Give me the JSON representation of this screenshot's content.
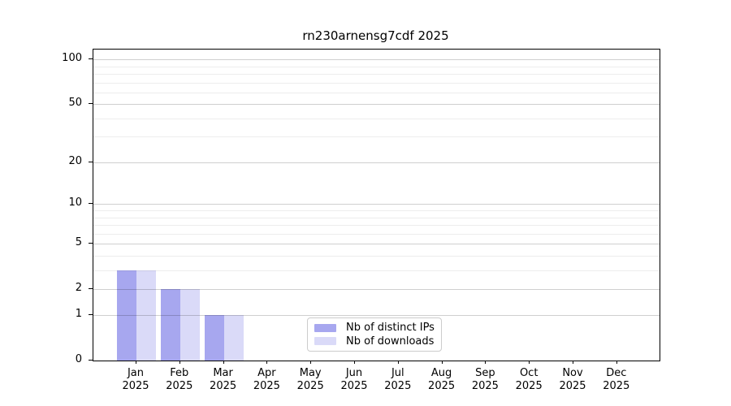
{
  "title": "rn230arnensg7cdf 2025",
  "chart_data": {
    "type": "bar",
    "title": "rn230arnensg7cdf 2025",
    "year": "2025",
    "months": [
      "Jan",
      "Feb",
      "Mar",
      "Apr",
      "May",
      "Jun",
      "Jul",
      "Aug",
      "Sep",
      "Oct",
      "Nov",
      "Dec"
    ],
    "categories": [
      "Jan 2025",
      "Feb 2025",
      "Mar 2025",
      "Apr 2025",
      "May 2025",
      "Jun 2025",
      "Jul 2025",
      "Aug 2025",
      "Sep 2025",
      "Oct 2025",
      "Nov 2025",
      "Dec 2025"
    ],
    "series": [
      {
        "name": "Nb of distinct IPs",
        "color": "#a7a7ef",
        "values": [
          3,
          2,
          1,
          0,
          0,
          0,
          0,
          0,
          0,
          0,
          0,
          0
        ]
      },
      {
        "name": "Nb of downloads",
        "color": "#dadaf8",
        "values": [
          3,
          2,
          1,
          0,
          0,
          0,
          0,
          0,
          0,
          0,
          0,
          0
        ]
      }
    ],
    "xlabel": "",
    "ylabel": "",
    "yscale": "log10(1+x)",
    "ylim": [
      0,
      117
    ],
    "yticks_major": [
      0,
      1,
      2,
      5,
      10,
      20,
      50,
      100
    ],
    "yticks_minor": [
      3,
      4,
      6,
      7,
      8,
      9,
      30,
      40,
      60,
      70,
      80,
      90
    ],
    "grid": true,
    "legend_position": "lower center",
    "colors": {
      "background": "#ffffff",
      "axis": "#000000",
      "grid_major": "#cecece",
      "grid_minor": "#ececec",
      "text": "#000000",
      "legend_border": "#cccccc"
    }
  }
}
